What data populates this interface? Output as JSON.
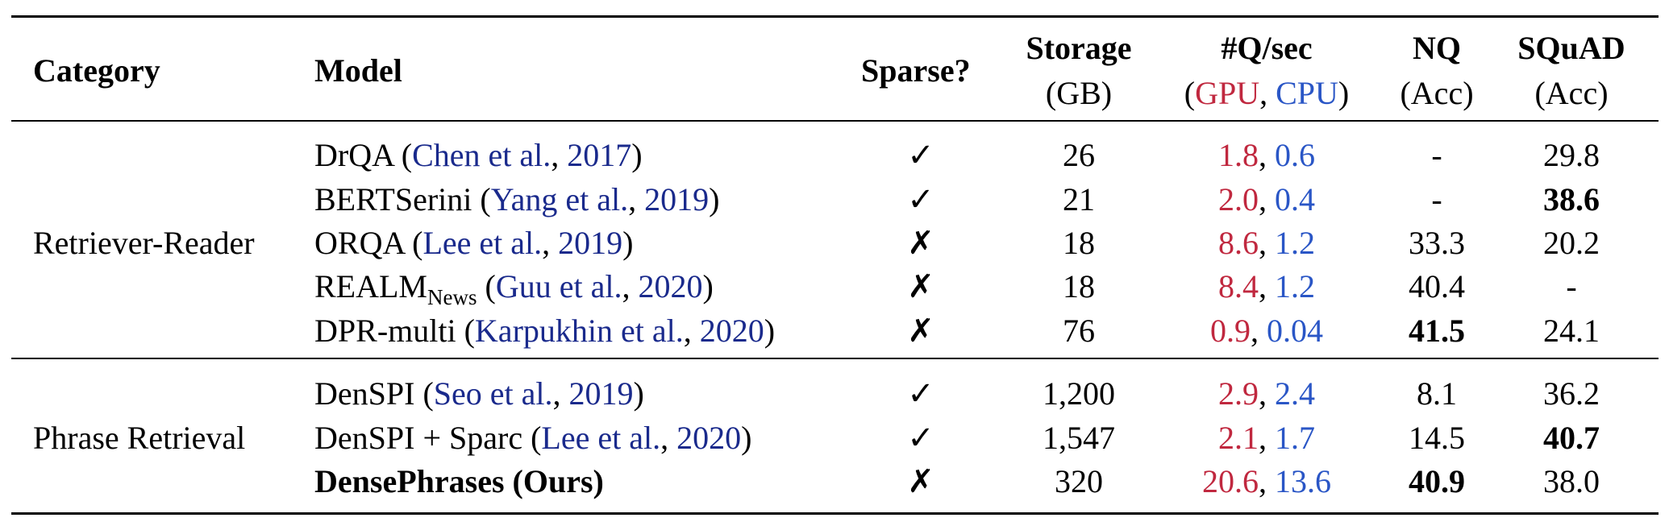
{
  "table": {
    "headers": {
      "category": "Category",
      "model": "Model",
      "sparse": "Sparse?",
      "storage": "Storage",
      "storage_unit": "(GB)",
      "qps": "#Q/sec",
      "qps_open": "(",
      "qps_gpu": "GPU",
      "qps_sep": ", ",
      "qps_cpu": "CPU",
      "qps_close": ")",
      "nq": "NQ",
      "nq_unit": "(Acc)",
      "squad": "SQuAD",
      "squad_unit": "(Acc)"
    },
    "groups": [
      {
        "category": "Retriever-Reader"
      },
      {
        "category": "Phrase Retrieval"
      }
    ],
    "rows": [
      {
        "model": "DrQA",
        "open": " (",
        "cite": "Chen et al.",
        "sep": ", ",
        "year": "2017",
        "close": ")",
        "sparse": "✓",
        "storage": "26",
        "gpu": "1.8",
        "comma": ", ",
        "cpu": "0.6",
        "nq": "-",
        "squad": "29.8"
      },
      {
        "model": "BERTSerini",
        "open": " (",
        "cite": "Yang et al.",
        "sep": ", ",
        "year": "2019",
        "close": ")",
        "sparse": "✓",
        "storage": "21",
        "gpu": "2.0",
        "comma": ", ",
        "cpu": "0.4",
        "nq": "-",
        "squad": "38.6"
      },
      {
        "model": "ORQA",
        "open": " (",
        "cite": "Lee et al.",
        "sep": ", ",
        "year": "2019",
        "close": ")",
        "sparse": "✗",
        "storage": "18",
        "gpu": "8.6",
        "comma": ", ",
        "cpu": "1.2",
        "nq": "33.3",
        "squad": "20.2"
      },
      {
        "model": "REALM",
        "model_sub": "News",
        "open": " (",
        "cite": "Guu et al.",
        "sep": ", ",
        "year": "2020",
        "close": ")",
        "sparse": "✗",
        "storage": "18",
        "gpu": "8.4",
        "comma": ", ",
        "cpu": "1.2",
        "nq": "40.4",
        "squad": "-"
      },
      {
        "model": "DPR-multi",
        "open": " (",
        "cite": "Karpukhin et al.",
        "sep": ", ",
        "year": "2020",
        "close": ")",
        "sparse": "✗",
        "storage": "76",
        "gpu": "0.9",
        "comma": ", ",
        "cpu": "0.04",
        "nq": "41.5",
        "squad": "24.1"
      },
      {
        "model": "DenSPI",
        "open": " (",
        "cite": "Seo et al.",
        "sep": ", ",
        "year": "2019",
        "close": ")",
        "sparse": "✓",
        "storage": "1,200",
        "gpu": "2.9",
        "comma": ", ",
        "cpu": "2.4",
        "nq": "8.1",
        "squad": "36.2"
      },
      {
        "model": "DenSPI + Sparc",
        "open": " (",
        "cite": "Lee et al.",
        "sep": ", ",
        "year": "2020",
        "close": ")",
        "sparse": "✓",
        "storage": "1,547",
        "gpu": "2.1",
        "comma": ", ",
        "cpu": "1.7",
        "nq": "14.5",
        "squad": "40.7"
      },
      {
        "model": "DensePhrases (Ours)",
        "sparse": "✗",
        "storage": "320",
        "gpu": "20.6",
        "comma": ", ",
        "cpu": "13.6",
        "nq": "40.9",
        "squad": "38.0"
      }
    ]
  }
}
